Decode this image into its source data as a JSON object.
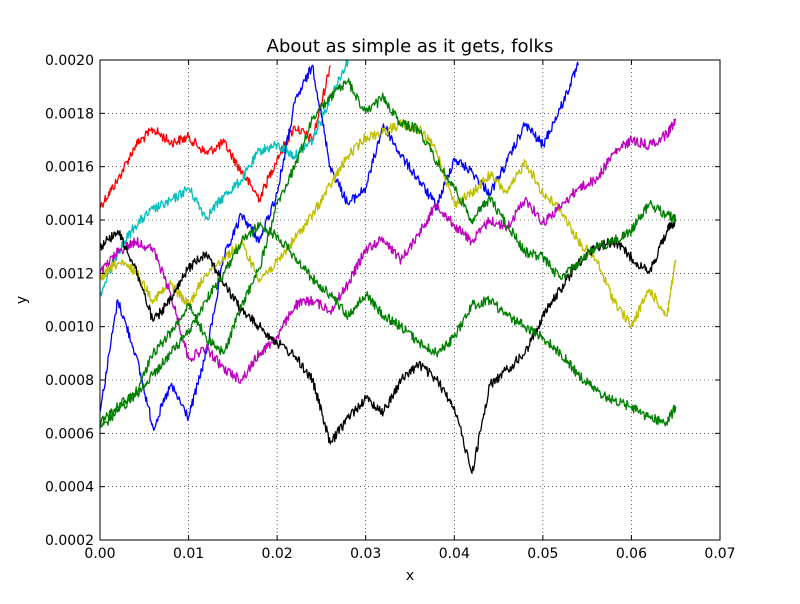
{
  "chart_data": {
    "type": "line",
    "title": "About as simple as it gets, folks",
    "xlabel": "x",
    "ylabel": "y",
    "xlim": [
      0.0,
      0.07
    ],
    "ylim": [
      0.0002,
      0.002
    ],
    "grid": true,
    "xticks": [
      0.0,
      0.01,
      0.02,
      0.03,
      0.04,
      0.05,
      0.06,
      0.07
    ],
    "xtick_labels": [
      "0.00",
      "0.01",
      "0.02",
      "0.03",
      "0.04",
      "0.05",
      "0.06",
      "0.07"
    ],
    "yticks": [
      0.0002,
      0.0004,
      0.0006,
      0.0008,
      0.001,
      0.0012,
      0.0014,
      0.0016,
      0.0018,
      0.002
    ],
    "ytick_labels": [
      "0.0002",
      "0.0004",
      "0.0006",
      "0.0008",
      "0.0010",
      "0.0012",
      "0.0014",
      "0.0016",
      "0.0018",
      "0.0020"
    ],
    "series": [
      {
        "color": "#ff0000",
        "x": [
          0.0,
          0.002,
          0.004,
          0.006,
          0.008,
          0.01,
          0.012,
          0.014,
          0.016,
          0.018,
          0.02,
          0.022,
          0.024,
          0.026
        ],
        "y": [
          0.00145,
          0.00155,
          0.00168,
          0.00174,
          0.00169,
          0.00171,
          0.00165,
          0.00169,
          0.00158,
          0.00148,
          0.00163,
          0.00175,
          0.0017,
          0.00198
        ]
      },
      {
        "color": "#00bfbf",
        "x": [
          0.0,
          0.002,
          0.004,
          0.006,
          0.008,
          0.01,
          0.012,
          0.014,
          0.016,
          0.018,
          0.02,
          0.022,
          0.024,
          0.026,
          0.028
        ],
        "y": [
          0.00112,
          0.00128,
          0.00138,
          0.00144,
          0.00147,
          0.00152,
          0.00141,
          0.00149,
          0.00155,
          0.00166,
          0.00168,
          0.00164,
          0.0017,
          0.00186,
          0.002
        ]
      },
      {
        "color": "#0000ff",
        "x": [
          0.0,
          0.002,
          0.004,
          0.006,
          0.008,
          0.01,
          0.012,
          0.014,
          0.016,
          0.018,
          0.02,
          0.022,
          0.024,
          0.026,
          0.028,
          0.03,
          0.032,
          0.034,
          0.036,
          0.038,
          0.04,
          0.042,
          0.044,
          0.046,
          0.048,
          0.05,
          0.052,
          0.054
        ],
        "y": [
          0.00068,
          0.0011,
          0.0009,
          0.00062,
          0.00078,
          0.00066,
          0.0009,
          0.00126,
          0.00142,
          0.00132,
          0.0015,
          0.00184,
          0.00198,
          0.0016,
          0.00146,
          0.00152,
          0.00176,
          0.00164,
          0.00155,
          0.00145,
          0.00163,
          0.00158,
          0.0015,
          0.00162,
          0.00176,
          0.00168,
          0.00182,
          0.00198
        ]
      },
      {
        "color": "#bfbf00",
        "x": [
          0.0,
          0.002,
          0.004,
          0.006,
          0.008,
          0.01,
          0.012,
          0.014,
          0.016,
          0.018,
          0.02,
          0.022,
          0.024,
          0.026,
          0.028,
          0.03,
          0.032,
          0.034,
          0.036,
          0.038,
          0.04,
          0.042,
          0.044,
          0.046,
          0.048,
          0.05,
          0.052,
          0.054,
          0.056,
          0.058,
          0.06,
          0.062,
          0.064,
          0.065
        ],
        "y": [
          0.00118,
          0.00124,
          0.00121,
          0.0011,
          0.00116,
          0.00108,
          0.0012,
          0.00126,
          0.00131,
          0.00118,
          0.00124,
          0.00133,
          0.00142,
          0.00153,
          0.00164,
          0.00171,
          0.00173,
          0.00176,
          0.00174,
          0.00166,
          0.00146,
          0.0015,
          0.00157,
          0.0015,
          0.00162,
          0.0015,
          0.00144,
          0.00132,
          0.00125,
          0.0011,
          0.001,
          0.00114,
          0.00104,
          0.00125
        ]
      },
      {
        "color": "#bf00bf",
        "x": [
          0.0,
          0.002,
          0.004,
          0.006,
          0.008,
          0.01,
          0.012,
          0.014,
          0.016,
          0.018,
          0.02,
          0.022,
          0.024,
          0.026,
          0.028,
          0.03,
          0.032,
          0.034,
          0.036,
          0.038,
          0.04,
          0.042,
          0.044,
          0.046,
          0.048,
          0.05,
          0.052,
          0.054,
          0.056,
          0.058,
          0.06,
          0.062,
          0.064,
          0.065
        ],
        "y": [
          0.0012,
          0.00128,
          0.00132,
          0.00129,
          0.00112,
          0.00088,
          0.00092,
          0.00084,
          0.0008,
          0.0009,
          0.00096,
          0.00108,
          0.0011,
          0.00106,
          0.00116,
          0.00129,
          0.00133,
          0.00125,
          0.00135,
          0.00146,
          0.00138,
          0.00132,
          0.0014,
          0.00137,
          0.00148,
          0.00139,
          0.00145,
          0.00152,
          0.00155,
          0.00165,
          0.0017,
          0.00168,
          0.00172,
          0.00178
        ]
      },
      {
        "color": "#000000",
        "x": [
          0.0,
          0.002,
          0.004,
          0.006,
          0.008,
          0.01,
          0.012,
          0.014,
          0.016,
          0.018,
          0.02,
          0.022,
          0.024,
          0.026,
          0.028,
          0.03,
          0.032,
          0.034,
          0.036,
          0.038,
          0.04,
          0.042,
          0.044,
          0.046,
          0.048,
          0.05,
          0.052,
          0.054,
          0.056,
          0.058,
          0.06,
          0.062,
          0.064,
          0.065
        ],
        "y": [
          0.0013,
          0.00136,
          0.00122,
          0.00102,
          0.0011,
          0.00122,
          0.00128,
          0.00116,
          0.00106,
          0.001,
          0.00094,
          0.00089,
          0.0008,
          0.00056,
          0.00066,
          0.00073,
          0.00068,
          0.0008,
          0.00086,
          0.0008,
          0.0007,
          0.00045,
          0.00078,
          0.00084,
          0.0009,
          0.00104,
          0.00114,
          0.00124,
          0.0013,
          0.00132,
          0.00126,
          0.0012,
          0.00136,
          0.0014
        ]
      },
      {
        "color": "#008000",
        "x": [
          0.0,
          0.002,
          0.004,
          0.006,
          0.008,
          0.01,
          0.012,
          0.014,
          0.016,
          0.018,
          0.02,
          0.022,
          0.024,
          0.026,
          0.028,
          0.03,
          0.032,
          0.034,
          0.036,
          0.038,
          0.04,
          0.042,
          0.044,
          0.046,
          0.048,
          0.05,
          0.052,
          0.054,
          0.056,
          0.058,
          0.06,
          0.062,
          0.064,
          0.065
        ],
        "y": [
          0.00064,
          0.0007,
          0.00075,
          0.0009,
          0.00098,
          0.00108,
          0.00096,
          0.0009,
          0.00108,
          0.00122,
          0.00146,
          0.0016,
          0.00178,
          0.00186,
          0.00192,
          0.0018,
          0.00186,
          0.00176,
          0.00174,
          0.00162,
          0.00152,
          0.0014,
          0.00148,
          0.00138,
          0.00128,
          0.00126,
          0.00118,
          0.00124,
          0.0013,
          0.00132,
          0.00136,
          0.00146,
          0.00142,
          0.0014
        ]
      },
      {
        "color": "#008000",
        "x": [
          0.0,
          0.002,
          0.004,
          0.006,
          0.008,
          0.01,
          0.012,
          0.014,
          0.016,
          0.018,
          0.02,
          0.022,
          0.024,
          0.026,
          0.028,
          0.03,
          0.032,
          0.034,
          0.036,
          0.038,
          0.04,
          0.042,
          0.044,
          0.046,
          0.048,
          0.05,
          0.052,
          0.054,
          0.056,
          0.058,
          0.06,
          0.062,
          0.064,
          0.065
        ],
        "y": [
          0.00062,
          0.00068,
          0.00074,
          0.00082,
          0.0009,
          0.00098,
          0.0011,
          0.0012,
          0.00132,
          0.00138,
          0.00134,
          0.00126,
          0.00118,
          0.00112,
          0.00104,
          0.00112,
          0.00104,
          0.001,
          0.00094,
          0.0009,
          0.00096,
          0.00108,
          0.0011,
          0.00104,
          0.001,
          0.00096,
          0.0009,
          0.00082,
          0.00076,
          0.00072,
          0.0007,
          0.00066,
          0.00064,
          0.0007
        ]
      }
    ]
  }
}
